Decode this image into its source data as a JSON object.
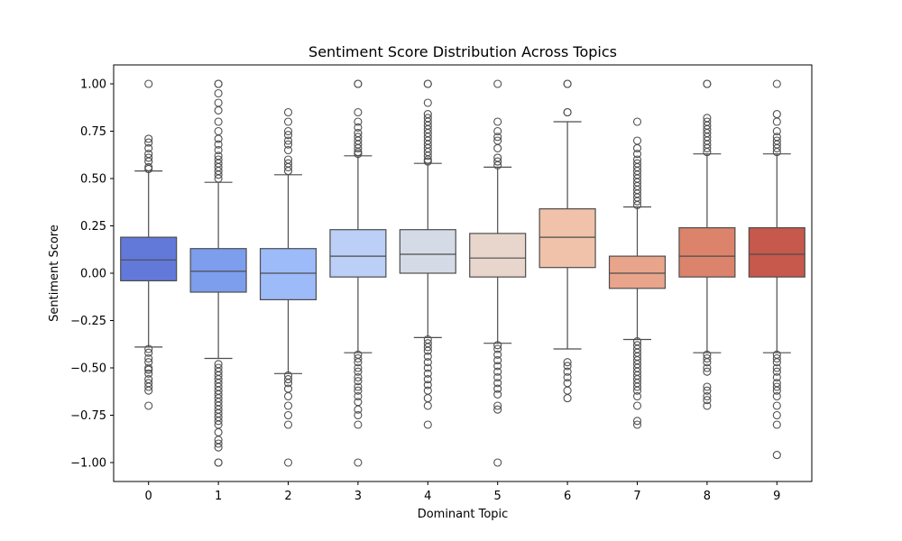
{
  "chart_data": {
    "type": "box",
    "title": "Sentiment Score Distribution Across Topics",
    "xlabel": "Dominant Topic",
    "ylabel": "Sentiment Score",
    "ylim": [
      -1.1,
      1.1
    ],
    "yticks": [
      -1.0,
      -0.75,
      -0.5,
      -0.25,
      0.0,
      0.25,
      0.5,
      0.75,
      1.0
    ],
    "ytick_labels": [
      "−1.00",
      "−0.75",
      "−0.50",
      "−0.25",
      "0.00",
      "0.25",
      "0.50",
      "0.75",
      "1.00"
    ],
    "categories": [
      "0",
      "1",
      "2",
      "3",
      "4",
      "5",
      "6",
      "7",
      "8",
      "9"
    ],
    "grid": false,
    "boxes": [
      {
        "category": "0",
        "color": "#6279d9",
        "whisker_low": -0.39,
        "q1": -0.04,
        "median": 0.07,
        "q3": 0.19,
        "whisker_high": 0.54,
        "outliers": [
          1.0,
          0.71,
          0.69,
          0.66,
          0.63,
          0.61,
          0.59,
          0.56,
          0.55,
          -0.4,
          -0.42,
          -0.45,
          -0.47,
          -0.5,
          -0.51,
          -0.53,
          -0.56,
          -0.58,
          -0.6,
          -0.62,
          -0.7
        ]
      },
      {
        "category": "1",
        "color": "#7d9ded",
        "whisker_low": -0.45,
        "q1": -0.1,
        "median": 0.01,
        "q3": 0.13,
        "whisker_high": 0.48,
        "outliers": [
          1.0,
          1.0,
          0.95,
          0.9,
          0.86,
          0.8,
          0.75,
          0.71,
          0.68,
          0.65,
          0.62,
          0.6,
          0.58,
          0.56,
          0.54,
          0.52,
          0.5,
          -0.48,
          -0.5,
          -0.52,
          -0.54,
          -0.56,
          -0.58,
          -0.6,
          -0.62,
          -0.64,
          -0.66,
          -0.68,
          -0.7,
          -0.72,
          -0.74,
          -0.76,
          -0.78,
          -0.8,
          -0.84,
          -0.88,
          -0.9,
          -0.92,
          -1.0,
          -1.0
        ]
      },
      {
        "category": "2",
        "color": "#9dbaf9",
        "whisker_low": -0.53,
        "q1": -0.14,
        "median": 0.0,
        "q3": 0.13,
        "whisker_high": 0.52,
        "outliers": [
          0.85,
          0.8,
          0.75,
          0.73,
          0.7,
          0.68,
          0.65,
          0.6,
          0.58,
          0.56,
          0.54,
          -0.54,
          -0.56,
          -0.58,
          -0.61,
          -0.65,
          -0.7,
          -0.75,
          -0.8,
          -1.0
        ]
      },
      {
        "category": "3",
        "color": "#bbcff7",
        "whisker_low": -0.42,
        "q1": -0.02,
        "median": 0.09,
        "q3": 0.23,
        "whisker_high": 0.62,
        "outliers": [
          1.0,
          1.0,
          0.85,
          0.8,
          0.77,
          0.74,
          0.72,
          0.7,
          0.68,
          0.66,
          0.64,
          0.63,
          -0.43,
          -0.45,
          -0.47,
          -0.5,
          -0.52,
          -0.55,
          -0.57,
          -0.6,
          -0.62,
          -0.65,
          -0.68,
          -0.72,
          -0.75,
          -0.8,
          -1.0
        ]
      },
      {
        "category": "4",
        "color": "#d4dbe6",
        "whisker_low": -0.34,
        "q1": 0.0,
        "median": 0.1,
        "q3": 0.23,
        "whisker_high": 0.58,
        "outliers": [
          1.0,
          1.0,
          0.9,
          0.84,
          0.82,
          0.8,
          0.78,
          0.76,
          0.74,
          0.72,
          0.7,
          0.68,
          0.66,
          0.64,
          0.62,
          0.6,
          0.59,
          -0.35,
          -0.37,
          -0.39,
          -0.41,
          -0.44,
          -0.47,
          -0.5,
          -0.53,
          -0.56,
          -0.59,
          -0.62,
          -0.66,
          -0.7,
          -0.8
        ]
      },
      {
        "category": "5",
        "color": "#e8d6cc",
        "whisker_low": -0.37,
        "q1": -0.02,
        "median": 0.08,
        "q3": 0.21,
        "whisker_high": 0.56,
        "outliers": [
          1.0,
          0.8,
          0.75,
          0.72,
          0.7,
          0.66,
          0.61,
          0.59,
          0.57,
          -0.38,
          -0.4,
          -0.43,
          -0.46,
          -0.49,
          -0.52,
          -0.55,
          -0.58,
          -0.61,
          -0.64,
          -0.7,
          -0.72,
          -1.0
        ]
      },
      {
        "category": "6",
        "color": "#efc2a9",
        "whisker_low": -0.4,
        "q1": 0.03,
        "median": 0.19,
        "q3": 0.34,
        "whisker_high": 0.8,
        "outliers": [
          1.0,
          1.0,
          0.85,
          0.85,
          -0.47,
          -0.49,
          -0.52,
          -0.55,
          -0.58,
          -0.62,
          -0.66
        ]
      },
      {
        "category": "7",
        "color": "#e9a58b",
        "whisker_low": -0.35,
        "q1": -0.08,
        "median": 0.0,
        "q3": 0.09,
        "whisker_high": 0.35,
        "outliers": [
          0.8,
          0.7,
          0.66,
          0.63,
          0.6,
          0.58,
          0.56,
          0.54,
          0.52,
          0.5,
          0.48,
          0.46,
          0.44,
          0.42,
          0.4,
          0.38,
          0.36,
          -0.36,
          -0.38,
          -0.4,
          -0.42,
          -0.44,
          -0.46,
          -0.48,
          -0.5,
          -0.52,
          -0.54,
          -0.56,
          -0.58,
          -0.6,
          -0.62,
          -0.65,
          -0.7,
          -0.78,
          -0.8
        ]
      },
      {
        "category": "8",
        "color": "#dc836c",
        "whisker_low": -0.42,
        "q1": -0.02,
        "median": 0.09,
        "q3": 0.24,
        "whisker_high": 0.63,
        "outliers": [
          1.0,
          1.0,
          0.82,
          0.8,
          0.78,
          0.76,
          0.74,
          0.72,
          0.7,
          0.68,
          0.66,
          0.64,
          -0.43,
          -0.45,
          -0.47,
          -0.5,
          -0.52,
          -0.6,
          -0.62,
          -0.65,
          -0.67,
          -0.7
        ]
      },
      {
        "category": "9",
        "color": "#c6584c",
        "whisker_low": -0.42,
        "q1": -0.02,
        "median": 0.1,
        "q3": 0.24,
        "whisker_high": 0.63,
        "outliers": [
          1.0,
          0.84,
          0.8,
          0.75,
          0.72,
          0.7,
          0.68,
          0.66,
          0.64,
          -0.43,
          -0.45,
          -0.47,
          -0.5,
          -0.52,
          -0.55,
          -0.58,
          -0.6,
          -0.62,
          -0.65,
          -0.7,
          -0.75,
          -0.8,
          -0.96
        ]
      }
    ]
  }
}
